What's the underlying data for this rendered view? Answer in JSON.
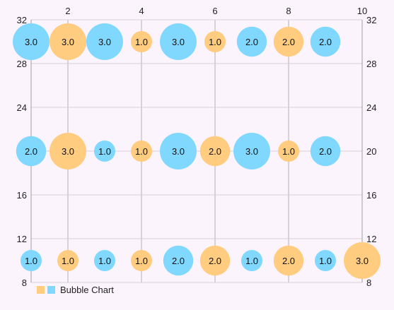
{
  "chart_data": {
    "type": "bubble",
    "xlim": [
      1,
      10
    ],
    "ylim": [
      8,
      32
    ],
    "x_ticks": [
      "2",
      "4",
      "6",
      "8",
      "10"
    ],
    "y_ticks": [
      "8",
      "12",
      "16",
      "20",
      "24",
      "28",
      "32"
    ],
    "grid": true,
    "legend": {
      "label": "Bubble Chart",
      "placement": "bottom-left"
    },
    "colors": {
      "blue": "#80d8ff",
      "orange": "#ffcc80"
    },
    "bubbles": [
      {
        "x": 1,
        "y": 30,
        "size": 3.0,
        "label": "3.0",
        "color": "blue"
      },
      {
        "x": 2,
        "y": 30,
        "size": 3.0,
        "label": "3.0",
        "color": "orange"
      },
      {
        "x": 3,
        "y": 30,
        "size": 3.0,
        "label": "3.0",
        "color": "blue"
      },
      {
        "x": 4,
        "y": 30,
        "size": 1.0,
        "label": "1.0",
        "color": "orange"
      },
      {
        "x": 5,
        "y": 30,
        "size": 3.0,
        "label": "3.0",
        "color": "blue"
      },
      {
        "x": 6,
        "y": 30,
        "size": 1.0,
        "label": "1.0",
        "color": "orange"
      },
      {
        "x": 7,
        "y": 30,
        "size": 2.0,
        "label": "2.0",
        "color": "blue"
      },
      {
        "x": 8,
        "y": 30,
        "size": 2.0,
        "label": "2.0",
        "color": "orange"
      },
      {
        "x": 9,
        "y": 30,
        "size": 2.0,
        "label": "2.0",
        "color": "blue"
      },
      {
        "x": 1,
        "y": 20,
        "size": 2.0,
        "label": "2.0",
        "color": "blue"
      },
      {
        "x": 2,
        "y": 20,
        "size": 3.0,
        "label": "3.0",
        "color": "orange"
      },
      {
        "x": 3,
        "y": 20,
        "size": 1.0,
        "label": "1.0",
        "color": "blue"
      },
      {
        "x": 4,
        "y": 20,
        "size": 1.0,
        "label": "1.0",
        "color": "orange"
      },
      {
        "x": 5,
        "y": 20,
        "size": 3.0,
        "label": "3.0",
        "color": "blue"
      },
      {
        "x": 6,
        "y": 20,
        "size": 2.0,
        "label": "2.0",
        "color": "orange"
      },
      {
        "x": 7,
        "y": 20,
        "size": 3.0,
        "label": "3.0",
        "color": "blue"
      },
      {
        "x": 8,
        "y": 20,
        "size": 1.0,
        "label": "1.0",
        "color": "orange"
      },
      {
        "x": 9,
        "y": 20,
        "size": 2.0,
        "label": "2.0",
        "color": "blue"
      },
      {
        "x": 1,
        "y": 10,
        "size": 1.0,
        "label": "1.0",
        "color": "blue"
      },
      {
        "x": 2,
        "y": 10,
        "size": 1.0,
        "label": "1.0",
        "color": "orange"
      },
      {
        "x": 3,
        "y": 10,
        "size": 1.0,
        "label": "1.0",
        "color": "blue"
      },
      {
        "x": 4,
        "y": 10,
        "size": 1.0,
        "label": "1.0",
        "color": "orange"
      },
      {
        "x": 5,
        "y": 10,
        "size": 2.0,
        "label": "2.0",
        "color": "blue"
      },
      {
        "x": 6,
        "y": 10,
        "size": 2.0,
        "label": "2.0",
        "color": "orange"
      },
      {
        "x": 7,
        "y": 10,
        "size": 1.0,
        "label": "1.0",
        "color": "blue"
      },
      {
        "x": 8,
        "y": 10,
        "size": 2.0,
        "label": "2.0",
        "color": "orange"
      },
      {
        "x": 9,
        "y": 10,
        "size": 1.0,
        "label": "1.0",
        "color": "blue"
      },
      {
        "x": 10,
        "y": 10,
        "size": 3.0,
        "label": "3.0",
        "color": "orange"
      }
    ]
  }
}
